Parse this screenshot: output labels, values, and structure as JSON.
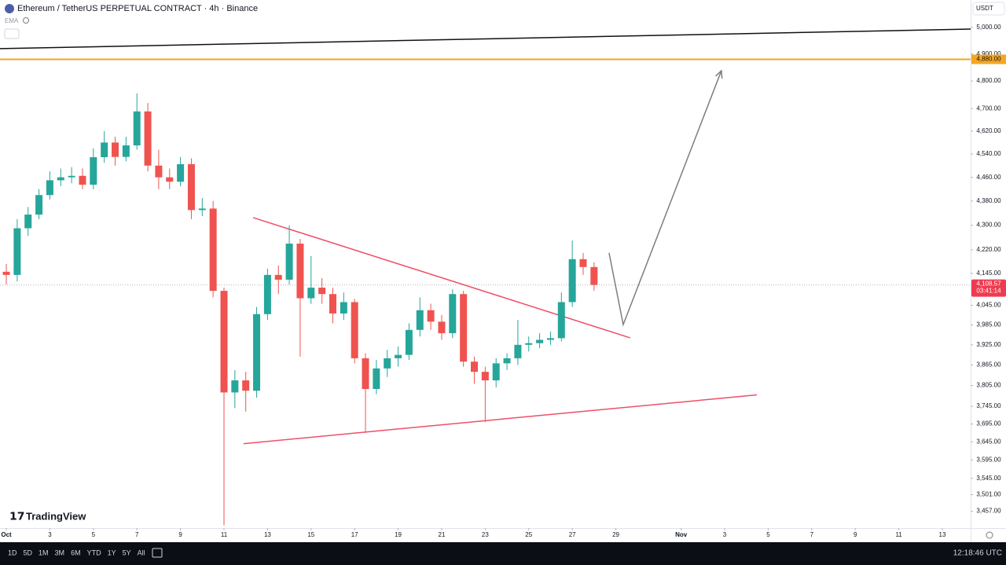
{
  "header": {
    "title": "Ethereum / TetherUS PERPETUAL CONTRACT · 4h · Binance",
    "indicator": "EMA",
    "currency": "USDT",
    "logo": "TradingView"
  },
  "toolbar": {
    "ranges": [
      "1D",
      "5D",
      "1M",
      "3M",
      "6M",
      "YTD",
      "1Y",
      "5Y",
      "All"
    ],
    "time": "12:18:46 UTC"
  },
  "chart_data": {
    "type": "candlestick",
    "log_scale": true,
    "up_color": "#26a69a",
    "down_color": "#ef5350",
    "x": [
      0,
      0.5,
      1,
      1.5,
      2,
      2.5,
      3,
      3.5,
      4,
      4.5,
      5,
      5.5,
      6,
      6.5,
      7,
      7.5,
      8,
      8.5,
      9,
      9.5,
      10,
      10.5,
      11,
      11.5,
      12,
      12.5,
      13,
      13.5,
      14,
      14.5,
      15,
      15.5,
      16,
      16.5,
      17,
      17.5,
      18,
      18.5,
      19,
      19.5,
      20,
      20.5,
      21,
      21.5,
      22,
      22.5,
      23,
      23.5,
      24,
      24.5,
      25,
      25.5,
      26,
      26.5,
      27
    ],
    "open": [
      4150,
      4140,
      4290,
      4335,
      4400,
      4450,
      4460,
      4465,
      4435,
      4529,
      4580,
      4530,
      4570,
      4690,
      4500,
      4460,
      4445,
      4505,
      4350,
      4355,
      4090,
      3785,
      3820,
      3790,
      4018,
      4140,
      4125,
      4240,
      4067,
      4100,
      4080,
      4020,
      4055,
      3885,
      3795,
      3855,
      3885,
      3895,
      3970,
      4030,
      3995,
      3960,
      4080,
      3875,
      3845,
      3820,
      3870,
      3885,
      3925,
      3930,
      3940,
      3945,
      4055,
      4190,
      4165
    ],
    "high": [
      4175,
      4320,
      4360,
      4420,
      4480,
      4490,
      4495,
      4490,
      4560,
      4620,
      4600,
      4600,
      4755,
      4720,
      4555,
      4490,
      4530,
      4525,
      4390,
      4380,
      4100,
      3850,
      3845,
      4040,
      4160,
      4170,
      4300,
      4255,
      4200,
      4130,
      4100,
      4085,
      4065,
      3900,
      3880,
      3910,
      3920,
      3990,
      4070,
      4050,
      4015,
      4095,
      4090,
      3890,
      3860,
      3885,
      3900,
      4000,
      3950,
      3960,
      3965,
      4085,
      4250,
      4210,
      4180
    ],
    "low": [
      4110,
      4120,
      4265,
      4320,
      4385,
      4430,
      4440,
      4420,
      4420,
      4510,
      4500,
      4515,
      4555,
      4480,
      4420,
      4420,
      4430,
      4320,
      4330,
      4070,
      3420,
      3740,
      3730,
      3770,
      4000,
      4080,
      4110,
      3890,
      4050,
      4050,
      3990,
      4000,
      3870,
      3670,
      3780,
      3830,
      3860,
      3880,
      3950,
      3970,
      3940,
      3945,
      3860,
      3810,
      3700,
      3800,
      3850,
      3865,
      3905,
      3915,
      3925,
      3935,
      4040,
      4140,
      4090
    ],
    "close": [
      4140,
      4290,
      4335,
      4400,
      4450,
      4460,
      4465,
      4435,
      4529,
      4580,
      4530,
      4570,
      4690,
      4500,
      4460,
      4445,
      4505,
      4350,
      4355,
      4090,
      3785,
      3820,
      3790,
      4018,
      4140,
      4125,
      4240,
      4067,
      4100,
      4080,
      4020,
      4055,
      3885,
      3795,
      3855,
      3885,
      3895,
      3970,
      4030,
      3995,
      3960,
      4080,
      3875,
      3845,
      3820,
      3870,
      3885,
      3925,
      3930,
      3940,
      3945,
      4055,
      4190,
      4165,
      4108.57
    ],
    "xlim": [
      -0.29,
      44.3
    ],
    "xticks": [
      {
        "value": 0,
        "label": "Oct"
      },
      {
        "value": 2,
        "label": "3"
      },
      {
        "value": 4,
        "label": "5"
      },
      {
        "value": 6,
        "label": "7"
      },
      {
        "value": 8,
        "label": "9"
      },
      {
        "value": 10,
        "label": "11"
      },
      {
        "value": 12,
        "label": "13"
      },
      {
        "value": 14,
        "label": "15"
      },
      {
        "value": 16,
        "label": "17"
      },
      {
        "value": 18,
        "label": "19"
      },
      {
        "value": 20,
        "label": "21"
      },
      {
        "value": 22,
        "label": "23"
      },
      {
        "value": 24,
        "label": "25"
      },
      {
        "value": 26,
        "label": "27"
      },
      {
        "value": 28,
        "label": "29"
      },
      {
        "value": 31,
        "label": "Nov"
      },
      {
        "value": 33,
        "label": "3"
      },
      {
        "value": 35,
        "label": "5"
      },
      {
        "value": 37,
        "label": "7"
      },
      {
        "value": 39,
        "label": "9"
      },
      {
        "value": 41,
        "label": "11"
      },
      {
        "value": 43,
        "label": "13"
      }
    ],
    "ylim": [
      3413,
      5106
    ],
    "yticks": [
      {
        "value": 5000,
        "label": "5,000.00"
      },
      {
        "value": 4900,
        "label": "4,900.00"
      },
      {
        "value": 4800,
        "label": "4,800.00"
      },
      {
        "value": 4700,
        "label": "4,700.00"
      },
      {
        "value": 4620,
        "label": "4,620.00"
      },
      {
        "value": 4540,
        "label": "4,540.00"
      },
      {
        "value": 4460,
        "label": "4,460.00"
      },
      {
        "value": 4380,
        "label": "4,380.00"
      },
      {
        "value": 4300,
        "label": "4,300.00"
      },
      {
        "value": 4220,
        "label": "4,220.00"
      },
      {
        "value": 4145,
        "label": "4,145.00"
      },
      {
        "value": 4045,
        "label": "4,045.00"
      },
      {
        "value": 3985,
        "label": "3,985.00"
      },
      {
        "value": 3925,
        "label": "3,925.00"
      },
      {
        "value": 3865,
        "label": "3,865.00"
      },
      {
        "value": 3805,
        "label": "3,805.00"
      },
      {
        "value": 3745,
        "label": "3,745.00"
      },
      {
        "value": 3695,
        "label": "3,695.00"
      },
      {
        "value": 3645,
        "label": "3,645.00"
      },
      {
        "value": 3595,
        "label": "3,595.00"
      },
      {
        "value": 3545,
        "label": "3,545.00"
      },
      {
        "value": 3501,
        "label": "3,501.00"
      },
      {
        "value": 3457,
        "label": "3,457.00"
      }
    ],
    "price_lines": [
      {
        "value": 4880,
        "label": "4,880.00",
        "color": "#f5a623"
      }
    ],
    "last_price": {
      "value": 4108.57,
      "label": "4,108.57",
      "countdown": "03:41:14",
      "color": "#ef3b50"
    },
    "drawings": [
      {
        "color": "#111111",
        "arrow": false,
        "x": [
          -0.29,
          44.3
        ],
        "y": [
          4920,
          4994
        ]
      },
      {
        "color": "#ef4f66",
        "arrow": false,
        "x": [
          11.34,
          28.66
        ],
        "y": [
          4325,
          3946
        ]
      },
      {
        "color": "#ef4f66",
        "arrow": false,
        "x": [
          10.9,
          34.48
        ],
        "y": [
          3640,
          3778
        ]
      },
      {
        "color": "#7d7d7d",
        "arrow": true,
        "x": [
          27.69,
          28.34,
          32.85
        ],
        "y": [
          4210,
          3986,
          4838
        ]
      }
    ]
  }
}
